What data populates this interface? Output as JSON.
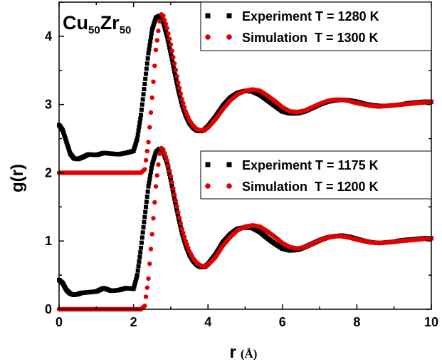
{
  "chart_data": {
    "type": "scatter",
    "title": {
      "element1": "Cu",
      "sub1": "50",
      "element2": "Zr",
      "sub2": "50"
    },
    "xlabel": "r",
    "xunit": "(Å)",
    "ylabel": "g(r)",
    "xlim": [
      0,
      10
    ],
    "ylim": [
      0,
      4.5
    ],
    "xticks": [
      "0",
      "2",
      "4",
      "6",
      "8",
      "10"
    ],
    "yticks": [
      "0",
      "1",
      "2",
      "3",
      "4"
    ],
    "grid": false,
    "legends": [
      {
        "placement": "top-right",
        "entries": [
          {
            "label": "Experiment T = 1280 K",
            "color": "#000000",
            "marker": "square"
          },
          {
            "label": "Simulation  T = 1300 K",
            "color": "#e00000",
            "marker": "circle"
          }
        ]
      },
      {
        "placement": "middle-right",
        "entries": [
          {
            "label": "Experiment T = 1175 K",
            "color": "#000000",
            "marker": "square"
          },
          {
            "label": "Simulation  T = 1200 K",
            "color": "#e00000",
            "marker": "circle"
          }
        ]
      }
    ],
    "series": [
      {
        "name": "Experiment T = 1280 K",
        "color": "#000000",
        "marker": "square",
        "x": [
          0.0,
          0.1,
          0.2,
          0.3,
          0.4,
          0.5,
          0.6,
          0.8,
          1.0,
          1.2,
          1.4,
          1.6,
          1.8,
          2.0,
          2.1,
          2.2,
          2.3,
          2.4,
          2.5,
          2.6,
          2.7,
          2.8,
          2.9,
          3.0,
          3.1,
          3.2,
          3.3,
          3.4,
          3.5,
          3.6,
          3.7,
          3.8,
          3.9,
          4.0,
          4.2,
          4.4,
          4.6,
          4.8,
          5.0,
          5.2,
          5.4,
          5.6,
          5.8,
          6.0,
          6.2,
          6.4,
          6.6,
          6.8,
          7.0,
          7.2,
          7.4,
          7.6,
          7.8,
          8.0,
          8.2,
          8.4,
          8.6,
          8.8,
          9.0,
          9.2,
          9.4,
          9.6,
          9.8,
          10.0
        ],
        "y": [
          2.7,
          2.62,
          2.45,
          2.28,
          2.21,
          2.2,
          2.22,
          2.27,
          2.26,
          2.29,
          2.28,
          2.27,
          2.29,
          2.32,
          2.5,
          2.85,
          3.3,
          3.75,
          4.1,
          4.27,
          4.3,
          4.2,
          4.0,
          3.75,
          3.48,
          3.22,
          3.0,
          2.84,
          2.73,
          2.66,
          2.62,
          2.61,
          2.63,
          2.68,
          2.82,
          2.98,
          3.1,
          3.17,
          3.2,
          3.19,
          3.14,
          3.06,
          2.98,
          2.9,
          2.87,
          2.87,
          2.9,
          2.95,
          3.0,
          3.04,
          3.06,
          3.07,
          3.06,
          3.04,
          3.01,
          2.99,
          2.98,
          2.98,
          2.99,
          3.0,
          3.02,
          3.03,
          3.04,
          3.04
        ]
      },
      {
        "name": "Simulation  T = 1300 K",
        "color": "#e00000",
        "marker": "circle",
        "x": [
          0.0,
          0.2,
          0.4,
          0.6,
          0.8,
          1.0,
          1.2,
          1.4,
          1.6,
          1.8,
          2.0,
          2.1,
          2.2,
          2.3,
          2.4,
          2.5,
          2.6,
          2.7,
          2.75,
          2.8,
          2.9,
          3.0,
          3.1,
          3.2,
          3.3,
          3.4,
          3.5,
          3.6,
          3.7,
          3.8,
          3.9,
          4.0,
          4.2,
          4.4,
          4.6,
          4.8,
          5.0,
          5.2,
          5.4,
          5.6,
          5.8,
          6.0,
          6.2,
          6.4,
          6.6,
          6.8,
          7.0,
          7.2,
          7.4,
          7.6,
          7.8,
          8.0,
          8.2,
          8.4,
          8.6,
          8.8,
          9.0,
          9.2,
          9.4,
          9.6,
          9.8,
          10.0
        ],
        "y": [
          2.0,
          2.0,
          2.0,
          2.0,
          2.0,
          2.0,
          2.0,
          2.0,
          2.0,
          2.0,
          2.0,
          2.0,
          2.0,
          2.05,
          2.45,
          3.1,
          3.8,
          4.22,
          4.32,
          4.3,
          4.12,
          3.88,
          3.6,
          3.32,
          3.08,
          2.9,
          2.77,
          2.69,
          2.64,
          2.62,
          2.63,
          2.66,
          2.78,
          2.93,
          3.06,
          3.15,
          3.2,
          3.22,
          3.2,
          3.13,
          3.05,
          2.96,
          2.9,
          2.89,
          2.91,
          2.96,
          3.01,
          3.05,
          3.07,
          3.07,
          3.05,
          3.02,
          3.0,
          2.98,
          2.97,
          2.98,
          2.99,
          3.0,
          3.01,
          3.02,
          3.03,
          3.04
        ]
      },
      {
        "name": "Experiment T = 1175 K",
        "color": "#000000",
        "marker": "square",
        "x": [
          0.0,
          0.1,
          0.2,
          0.3,
          0.4,
          0.5,
          0.6,
          0.8,
          1.0,
          1.2,
          1.4,
          1.6,
          1.8,
          2.0,
          2.1,
          2.2,
          2.3,
          2.4,
          2.5,
          2.6,
          2.7,
          2.8,
          2.9,
          3.0,
          3.1,
          3.2,
          3.3,
          3.4,
          3.5,
          3.6,
          3.7,
          3.8,
          3.9,
          4.0,
          4.2,
          4.4,
          4.6,
          4.8,
          5.0,
          5.2,
          5.4,
          5.6,
          5.8,
          6.0,
          6.2,
          6.4,
          6.6,
          6.8,
          7.0,
          7.2,
          7.4,
          7.6,
          7.8,
          8.0,
          8.2,
          8.4,
          8.6,
          8.8,
          9.0,
          9.2,
          9.4,
          9.6,
          9.8,
          10.0
        ],
        "y": [
          0.43,
          0.38,
          0.28,
          0.23,
          0.21,
          0.22,
          0.24,
          0.25,
          0.26,
          0.31,
          0.27,
          0.28,
          0.31,
          0.3,
          0.5,
          0.9,
          1.35,
          1.8,
          2.12,
          2.3,
          2.35,
          2.3,
          2.15,
          1.9,
          1.62,
          1.36,
          1.12,
          0.94,
          0.8,
          0.71,
          0.65,
          0.62,
          0.62,
          0.66,
          0.8,
          0.98,
          1.1,
          1.18,
          1.2,
          1.19,
          1.13,
          1.04,
          0.96,
          0.89,
          0.86,
          0.87,
          0.91,
          0.96,
          1.01,
          1.05,
          1.07,
          1.08,
          1.06,
          1.03,
          1.0,
          0.98,
          0.97,
          0.98,
          0.99,
          1.01,
          1.02,
          1.03,
          1.04,
          1.04
        ]
      },
      {
        "name": "Simulation  T = 1200 K",
        "color": "#e00000",
        "marker": "circle",
        "x": [
          0.0,
          0.2,
          0.4,
          0.6,
          0.8,
          1.0,
          1.2,
          1.4,
          1.6,
          1.8,
          2.0,
          2.1,
          2.2,
          2.3,
          2.4,
          2.5,
          2.6,
          2.7,
          2.75,
          2.8,
          2.9,
          3.0,
          3.1,
          3.2,
          3.3,
          3.4,
          3.5,
          3.6,
          3.7,
          3.8,
          3.9,
          4.0,
          4.2,
          4.4,
          4.6,
          4.8,
          5.0,
          5.2,
          5.4,
          5.6,
          5.8,
          6.0,
          6.2,
          6.4,
          6.6,
          6.8,
          7.0,
          7.2,
          7.4,
          7.6,
          7.8,
          8.0,
          8.2,
          8.4,
          8.6,
          8.8,
          9.0,
          9.2,
          9.4,
          9.6,
          9.8,
          10.0
        ],
        "y": [
          0.0,
          0.0,
          0.0,
          0.0,
          0.0,
          0.0,
          0.0,
          0.0,
          0.0,
          0.0,
          0.0,
          0.0,
          0.0,
          0.05,
          0.45,
          1.1,
          1.8,
          2.28,
          2.36,
          2.34,
          2.18,
          1.95,
          1.68,
          1.42,
          1.18,
          1.0,
          0.85,
          0.75,
          0.68,
          0.64,
          0.63,
          0.65,
          0.76,
          0.93,
          1.06,
          1.16,
          1.21,
          1.23,
          1.21,
          1.14,
          1.06,
          0.97,
          0.91,
          0.89,
          0.91,
          0.96,
          1.01,
          1.05,
          1.07,
          1.07,
          1.05,
          1.02,
          1.0,
          0.98,
          0.97,
          0.98,
          0.99,
          1.0,
          1.01,
          1.02,
          1.03,
          1.04
        ]
      }
    ]
  }
}
